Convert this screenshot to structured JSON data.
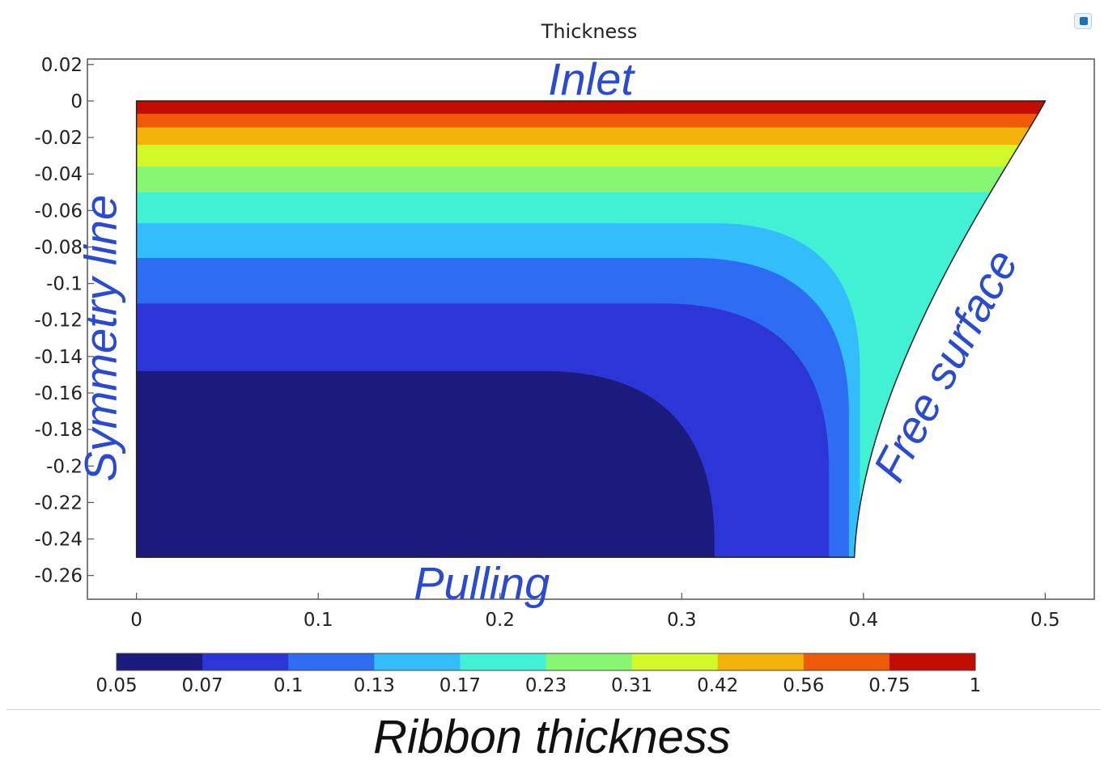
{
  "chart_data": {
    "type": "heatmap",
    "title": "Thickness",
    "xlim": [
      -0.027,
      0.527
    ],
    "ylim": [
      -0.273,
      0.023
    ],
    "x_ticks": [
      0,
      0.1,
      0.2,
      0.3,
      0.4,
      0.5
    ],
    "x_tick_labels": [
      "0",
      "0.1",
      "0.2",
      "0.3",
      "0.4",
      "0.5"
    ],
    "y_ticks": [
      0.02,
      0,
      -0.02,
      -0.04,
      -0.06,
      -0.08,
      -0.1,
      -0.12,
      -0.14,
      -0.16,
      -0.18,
      -0.2,
      -0.22,
      -0.24,
      -0.26
    ],
    "y_tick_labels": [
      "0.02",
      "0",
      "-0.02",
      "-0.04",
      "-0.06",
      "-0.08",
      "-0.1",
      "-0.12",
      "-0.14",
      "-0.16",
      "-0.18",
      "-0.2",
      "-0.22",
      "-0.24",
      "-0.26"
    ],
    "domain": {
      "symmetry_x": 0,
      "inlet_y": 0,
      "outlet_y": -0.25,
      "inlet_half_width": 0.5,
      "outlet_half_width": 0.395
    },
    "contour_levels": [
      0.05,
      0.07,
      0.1,
      0.13,
      0.17,
      0.23,
      0.31,
      0.42,
      0.56,
      0.75,
      1
    ],
    "level_colors": [
      "#1a1b7c",
      "#2c35d6",
      "#2e6cf2",
      "#33bdfb",
      "#42f0d4",
      "#87f773",
      "#d2f82a",
      "#f3b30a",
      "#ee5a06",
      "#c10c02"
    ],
    "contour_bands": [
      {
        "range": [
          0.75,
          1
        ],
        "y_center": -0.004,
        "x_at_outlet": 0.5
      },
      {
        "range": [
          0.56,
          0.75
        ],
        "y_center": -0.011,
        "x_at_outlet": 0.5
      },
      {
        "range": [
          0.42,
          0.56
        ],
        "y_center": -0.019,
        "x_at_outlet": 0.5
      },
      {
        "range": [
          0.31,
          0.42
        ],
        "y_center": -0.029,
        "x_at_outlet": 0.5
      },
      {
        "range": [
          0.23,
          0.31
        ],
        "y_center": -0.043,
        "x_at_outlet": 0.5
      },
      {
        "range": [
          0.17,
          0.23
        ],
        "y_center": -0.059,
        "x_at_outlet": 0.5
      },
      {
        "range": [
          0.13,
          0.17
        ],
        "y_center": -0.076,
        "x_at_outlet": 0.394
      },
      {
        "range": [
          0.1,
          0.13
        ],
        "y_center": -0.098,
        "x_at_outlet": 0.39
      },
      {
        "range": [
          0.07,
          0.1
        ],
        "y_center": -0.13,
        "x_at_outlet": 0.363
      },
      {
        "range": [
          0.05,
          0.07
        ],
        "y_center": -0.2,
        "x_at_outlet": 0.318
      }
    ],
    "colorbar": {
      "labels": [
        "0.05",
        "0.07",
        "0.1",
        "0.13",
        "0.17",
        "0.23",
        "0.31",
        "0.42",
        "0.56",
        "0.75",
        "1"
      ],
      "placement": "bottom"
    },
    "annotations": [
      {
        "text": "Inlet",
        "x": 0.25,
        "y": 0.0
      },
      {
        "text": "Symmetry line",
        "x": -0.02,
        "y": -0.13
      },
      {
        "text": "Free surface",
        "x": 0.45,
        "y": -0.14
      },
      {
        "text": "Pulling",
        "x": 0.19,
        "y": -0.255
      }
    ],
    "caption": "Ribbon thickness",
    "grid": false
  }
}
